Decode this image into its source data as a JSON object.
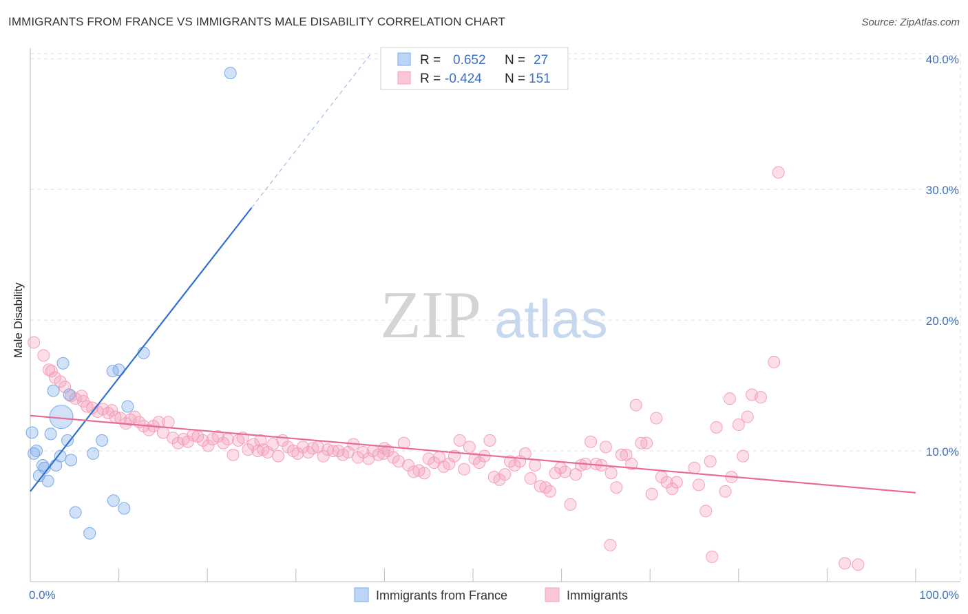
{
  "title": "IMMIGRANTS FROM FRANCE VS IMMIGRANTS MALE DISABILITY CORRELATION CHART",
  "source": "Source: ZipAtlas.com",
  "watermark": {
    "zip": "ZIP",
    "atlas": "atlas"
  },
  "chart_data": {
    "type": "scatter",
    "xlabel": "",
    "ylabel": "Male Disability",
    "xlim": [
      0,
      100
    ],
    "ylim": [
      0,
      40.8
    ],
    "x_tick_labels": [
      "0.0%",
      "100.0%"
    ],
    "y_ticks": [
      10,
      20,
      30,
      40
    ],
    "y_tick_labels": [
      "10.0%",
      "20.0%",
      "30.0%",
      "40.0%"
    ],
    "grid": true,
    "legend_position": "top-center",
    "stats": [
      {
        "r_label": "R = ",
        "r_value": "0.652",
        "n_label": "N = ",
        "n_value": "27"
      },
      {
        "r_label": "R = ",
        "r_value": "-0.424",
        "n_label": "N = ",
        "n_value": "151"
      }
    ],
    "series": [
      {
        "name": "Immigrants from France",
        "color": "#7aaae8",
        "line_color": "#2f6fd0",
        "trend": {
          "x0": 0,
          "y0": 6.9,
          "x1": 25,
          "y1": 28.6,
          "dash_to_x": 38.5,
          "dash_to_y": 40.4
        },
        "points": [
          [
            22.6,
            38.9
          ],
          [
            12.8,
            17.5
          ],
          [
            3.7,
            16.7
          ],
          [
            9.3,
            16.1
          ],
          [
            10.0,
            16.2
          ],
          [
            2.6,
            14.6
          ],
          [
            4.4,
            14.3
          ],
          [
            11.0,
            13.4
          ],
          [
            3.5,
            12.6
          ],
          [
            0.2,
            11.4
          ],
          [
            2.3,
            11.3
          ],
          [
            4.2,
            10.8
          ],
          [
            8.1,
            10.8
          ],
          [
            0.7,
            10.0
          ],
          [
            0.4,
            9.8
          ],
          [
            3.4,
            9.6
          ],
          [
            7.1,
            9.8
          ],
          [
            4.6,
            9.3
          ],
          [
            2.9,
            8.9
          ],
          [
            1.6,
            8.7
          ],
          [
            1.4,
            8.9
          ],
          [
            1.0,
            8.1
          ],
          [
            2.0,
            7.7
          ],
          [
            9.4,
            6.2
          ],
          [
            10.6,
            5.6
          ],
          [
            5.1,
            5.3
          ],
          [
            6.7,
            3.7
          ]
        ],
        "sizes": [
          1,
          1,
          1,
          1,
          1,
          1,
          1,
          1,
          3,
          1,
          1,
          1,
          1,
          1,
          1,
          1,
          1,
          1,
          1,
          1,
          1,
          1,
          1,
          1,
          1,
          1,
          1
        ]
      },
      {
        "name": "Immigrants",
        "color": "#f4a0b9",
        "line_color": "#e86b96",
        "trend": {
          "x0": 0,
          "y0": 12.7,
          "x1": 100,
          "y1": 6.8
        },
        "points": [
          [
            0.4,
            18.3
          ],
          [
            1.5,
            17.3
          ],
          [
            2.1,
            16.2
          ],
          [
            2.8,
            15.6
          ],
          [
            3.4,
            15.3
          ],
          [
            3.9,
            14.9
          ],
          [
            4.6,
            14.2
          ],
          [
            5.1,
            14.0
          ],
          [
            5.8,
            14.2
          ],
          [
            6.4,
            13.4
          ],
          [
            7.0,
            13.3
          ],
          [
            7.6,
            13.0
          ],
          [
            8.2,
            13.2
          ],
          [
            8.8,
            12.9
          ],
          [
            9.2,
            13.1
          ],
          [
            9.6,
            12.6
          ],
          [
            10.2,
            12.5
          ],
          [
            10.8,
            12.1
          ],
          [
            11.3,
            12.4
          ],
          [
            11.8,
            12.6
          ],
          [
            12.3,
            12.2
          ],
          [
            12.8,
            11.9
          ],
          [
            13.4,
            11.6
          ],
          [
            13.9,
            11.9
          ],
          [
            14.5,
            12.2
          ],
          [
            15.0,
            11.4
          ],
          [
            15.6,
            12.2
          ],
          [
            16.1,
            11.0
          ],
          [
            16.7,
            10.6
          ],
          [
            17.3,
            10.9
          ],
          [
            17.8,
            10.7
          ],
          [
            18.4,
            11.2
          ],
          [
            18.9,
            11.1
          ],
          [
            19.5,
            10.8
          ],
          [
            20.1,
            10.4
          ],
          [
            20.6,
            10.9
          ],
          [
            21.2,
            11.1
          ],
          [
            21.8,
            10.6
          ],
          [
            22.3,
            10.9
          ],
          [
            22.9,
            9.7
          ],
          [
            23.5,
            10.8
          ],
          [
            24.0,
            11.0
          ],
          [
            24.6,
            10.1
          ],
          [
            25.2,
            10.5
          ],
          [
            25.7,
            10.0
          ],
          [
            26.3,
            10.1
          ],
          [
            26.8,
            9.9
          ],
          [
            27.4,
            10.5
          ],
          [
            28.0,
            9.6
          ],
          [
            28.5,
            10.8
          ],
          [
            29.1,
            10.3
          ],
          [
            29.7,
            10.0
          ],
          [
            30.2,
            9.8
          ],
          [
            30.8,
            10.3
          ],
          [
            31.4,
            9.9
          ],
          [
            31.9,
            10.2
          ],
          [
            32.5,
            10.3
          ],
          [
            33.1,
            9.6
          ],
          [
            33.6,
            10.1
          ],
          [
            34.2,
            10.0
          ],
          [
            34.8,
            10.0
          ],
          [
            35.3,
            9.7
          ],
          [
            35.9,
            9.9
          ],
          [
            36.5,
            10.5
          ],
          [
            37.0,
            9.5
          ],
          [
            37.6,
            9.9
          ],
          [
            38.2,
            9.4
          ],
          [
            38.7,
            10.0
          ],
          [
            39.3,
            9.7
          ],
          [
            39.9,
            9.8
          ],
          [
            40.4,
            10.0
          ],
          [
            41.0,
            9.5
          ],
          [
            41.6,
            9.2
          ],
          [
            42.2,
            10.6
          ],
          [
            42.7,
            8.9
          ],
          [
            43.3,
            8.4
          ],
          [
            43.9,
            8.5
          ],
          [
            44.5,
            8.3
          ],
          [
            45.0,
            9.4
          ],
          [
            45.6,
            9.1
          ],
          [
            46.2,
            9.5
          ],
          [
            46.7,
            8.8
          ],
          [
            47.3,
            9.0
          ],
          [
            47.9,
            9.6
          ],
          [
            48.5,
            10.8
          ],
          [
            49.0,
            8.6
          ],
          [
            49.6,
            10.3
          ],
          [
            50.2,
            9.4
          ],
          [
            50.7,
            9.1
          ],
          [
            51.3,
            9.6
          ],
          [
            51.9,
            10.8
          ],
          [
            52.4,
            8.0
          ],
          [
            53.0,
            7.8
          ],
          [
            53.6,
            8.2
          ],
          [
            54.2,
            9.2
          ],
          [
            54.7,
            8.9
          ],
          [
            55.3,
            9.2
          ],
          [
            55.9,
            9.8
          ],
          [
            56.5,
            7.9
          ],
          [
            57.0,
            8.9
          ],
          [
            57.6,
            7.3
          ],
          [
            58.2,
            7.2
          ],
          [
            58.7,
            6.9
          ],
          [
            59.3,
            8.3
          ],
          [
            59.9,
            8.7
          ],
          [
            60.4,
            8.4
          ],
          [
            61.0,
            5.9
          ],
          [
            61.6,
            8.2
          ],
          [
            62.2,
            8.9
          ],
          [
            62.7,
            9.0
          ],
          [
            63.3,
            10.7
          ],
          [
            63.9,
            9.0
          ],
          [
            64.5,
            8.9
          ],
          [
            65.0,
            10.3
          ],
          [
            65.6,
            8.3
          ],
          [
            66.2,
            7.2
          ],
          [
            66.8,
            9.7
          ],
          [
            67.3,
            9.7
          ],
          [
            67.9,
            9.0
          ],
          [
            68.4,
            13.5
          ],
          [
            69.0,
            10.6
          ],
          [
            69.6,
            10.6
          ],
          [
            70.2,
            6.7
          ],
          [
            70.7,
            12.5
          ],
          [
            71.3,
            8.0
          ],
          [
            71.9,
            7.6
          ],
          [
            72.5,
            7.1
          ],
          [
            73.0,
            7.6
          ],
          [
            75.0,
            8.7
          ],
          [
            75.5,
            7.4
          ],
          [
            76.3,
            5.4
          ],
          [
            76.8,
            9.2
          ],
          [
            77.5,
            11.8
          ],
          [
            78.5,
            6.9
          ],
          [
            79.0,
            14.0
          ],
          [
            80.0,
            12.0
          ],
          [
            81.0,
            12.6
          ],
          [
            81.5,
            14.3
          ],
          [
            82.5,
            14.1
          ],
          [
            84.0,
            16.8
          ],
          [
            79.2,
            8.0
          ],
          [
            80.5,
            9.6
          ],
          [
            84.5,
            31.3
          ],
          [
            65.5,
            2.8
          ],
          [
            77.0,
            1.9
          ],
          [
            92.0,
            1.4
          ],
          [
            93.5,
            1.3
          ],
          [
            2.4,
            16.1
          ],
          [
            6.0,
            13.8
          ],
          [
            26.0,
            10.8
          ],
          [
            40.0,
            10.2
          ]
        ]
      }
    ],
    "x_axis_bottom_legend": [
      "Immigrants from France",
      "Immigrants"
    ]
  }
}
